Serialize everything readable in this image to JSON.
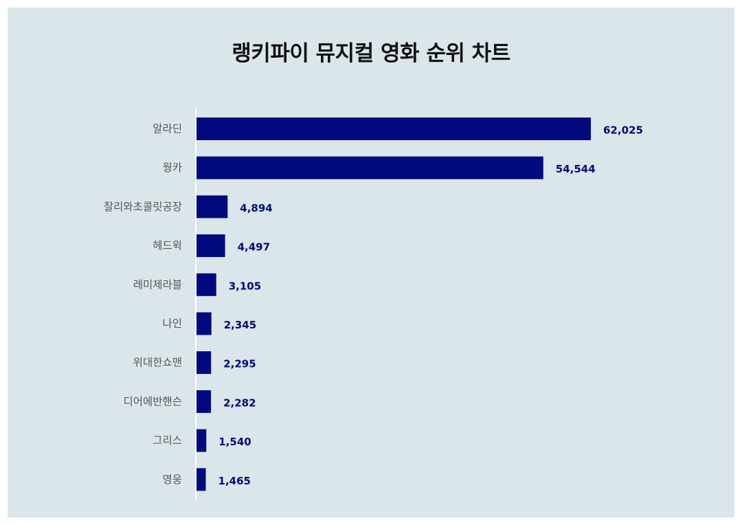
{
  "colors": {
    "background": "#dbe6ea",
    "bar": "#000a7e",
    "value_label": "#000a7e",
    "axis_line": "#ffffff"
  },
  "chart_data": {
    "type": "bar",
    "orientation": "horizontal",
    "title": "랭키파이 뮤지컬 영화 순위 차트",
    "categories": [
      "알라딘",
      "웡카",
      "찰리와초콜릿공장",
      "헤드윅",
      "레미제라블",
      "나인",
      "위대한쇼맨",
      "디어에반핸슨",
      "그리스",
      "영웅"
    ],
    "values": [
      62025,
      54544,
      4894,
      4497,
      3105,
      2345,
      2295,
      2282,
      1540,
      1465
    ],
    "value_labels": [
      "62,025",
      "54,544",
      "4,894",
      "4,497",
      "3,105",
      "2,345",
      "2,295",
      "2,282",
      "1,540",
      "1,465"
    ],
    "xlim": [
      0,
      62025
    ],
    "grid": false,
    "legend": "none"
  }
}
